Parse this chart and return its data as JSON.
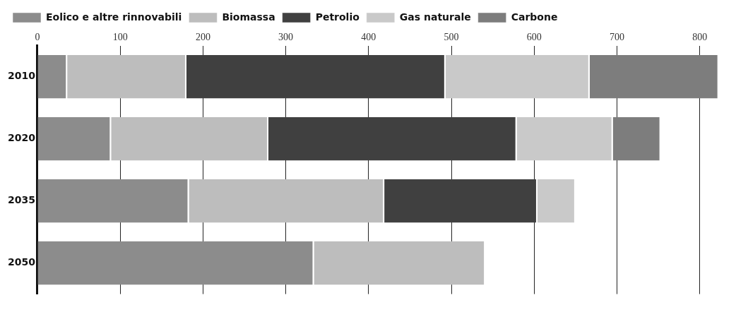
{
  "chart_data": {
    "type": "bar",
    "orientation": "horizontal",
    "stacked": true,
    "categories": [
      "2010",
      "2020",
      "2035",
      "2050"
    ],
    "series": [
      {
        "name": "Eolico e altre rinnovabili",
        "color": "#8c8c8c",
        "values": [
          36,
          89,
          183,
          334
        ]
      },
      {
        "name": "Biomassa",
        "color": "#bdbdbd",
        "values": [
          144,
          190,
          236,
          207
        ]
      },
      {
        "name": "Petrolio",
        "color": "#404040",
        "values": [
          313,
          300,
          185,
          null
        ]
      },
      {
        "name": "Gas naturale",
        "color": "#c9c9c9",
        "values": [
          174,
          116,
          46,
          null
        ]
      },
      {
        "name": "Carbone",
        "color": "#7d7d7d",
        "values": [
          156,
          58,
          null,
          null
        ]
      }
    ],
    "xlim": [
      0,
      825
    ],
    "xticks": [
      0,
      100,
      200,
      300,
      400,
      500,
      600,
      700,
      800
    ],
    "grid": "x",
    "legend": "top"
  }
}
